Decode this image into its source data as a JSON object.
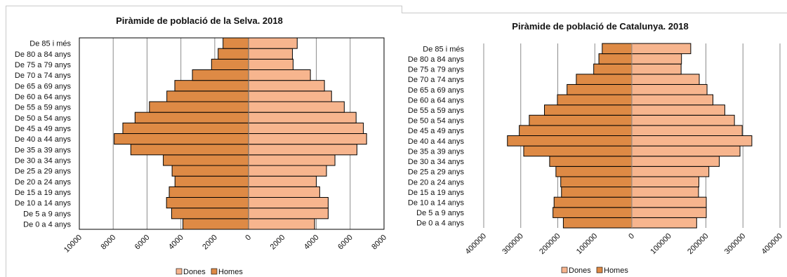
{
  "colors": {
    "homes": "#de8a45",
    "dones": "#f7b58e",
    "outline": "#000000",
    "grid": "#8c8c8c"
  },
  "chart_data": [
    {
      "type": "bar",
      "title": "Piràmide de població de la Selva. 2018",
      "categories": [
        "De 0 a 4 anys",
        "De 5 a 9 anys",
        "De 10 a 14 anys",
        "De 15 a 19 anys",
        "De 20 a 24 anys",
        "De 25 a 29 anys",
        "De 30 a 34 anys",
        "De 35 a 39 anys",
        "De 40 a 44 anys",
        "De 45 a 49 anys",
        "De 50 a 54 anys",
        "De 55 a 59 anys",
        "De 60 a 64 anys",
        "De 65 a 69 anys",
        "De 70 a 74 anys",
        "De 75 a 79 anys",
        "De 80 a 84 anys",
        "De 85 i més"
      ],
      "series": [
        {
          "name": "Dones",
          "values": [
            3900,
            4700,
            4700,
            4200,
            4000,
            4600,
            5100,
            6400,
            6970,
            6780,
            6350,
            5650,
            4900,
            4480,
            3650,
            2630,
            2590,
            2870
          ]
        },
        {
          "name": "Homes",
          "values": [
            3880,
            4550,
            4850,
            4690,
            4350,
            4520,
            5040,
            6960,
            7940,
            7430,
            6710,
            5860,
            4830,
            4360,
            3320,
            2190,
            1800,
            1510
          ]
        }
      ],
      "xticks": [
        "10000",
        "8000",
        "6000",
        "4000",
        "2000",
        "0",
        "2000",
        "4000",
        "6000",
        "8000"
      ],
      "xlim": [
        -10000,
        8000
      ],
      "legend": [
        "Dones",
        "Homes"
      ],
      "legend_position": "bottom"
    },
    {
      "type": "bar",
      "title": "Piràmide de població de Catalunya. 2018",
      "categories": [
        "De 0 a 4 anys",
        "De 5 a 9 anys",
        "De 10 a 14 anys",
        "De 15 a 19 anys",
        "De 20 a 24 anys",
        "De 25 a 29 anys",
        "De 30 a 34 anys",
        "De 35 a 39 anys",
        "De 40 a 44 anys",
        "De 45 a 49 anys",
        "De 50 a 54 anys",
        "De 55 a 59 anys",
        "De 60 a 64 anys",
        "De 65 a 69 anys",
        "De 70 a 74 anys",
        "De 75 a 79 anys",
        "De 80 a 84 anys",
        "De 85 i més"
      ],
      "series": [
        {
          "name": "Dones",
          "values": [
            175000,
            201000,
            201000,
            180000,
            181000,
            208000,
            236000,
            292000,
            324000,
            298000,
            277000,
            251000,
            219000,
            203000,
            182000,
            133000,
            134000,
            159000
          ]
        },
        {
          "name": "Homes",
          "values": [
            185000,
            213000,
            210000,
            190000,
            192000,
            205000,
            222000,
            292000,
            336000,
            304000,
            277000,
            236000,
            201000,
            175000,
            150000,
            103000,
            89000,
            80000
          ]
        }
      ],
      "xticks": [
        "400000",
        "300000",
        "200000",
        "100000",
        "0",
        "100000",
        "200000",
        "300000",
        "400000"
      ],
      "xlim": [
        -400000,
        400000
      ],
      "legend": [
        "Dones",
        "Homes"
      ],
      "legend_position": "bottom"
    }
  ]
}
